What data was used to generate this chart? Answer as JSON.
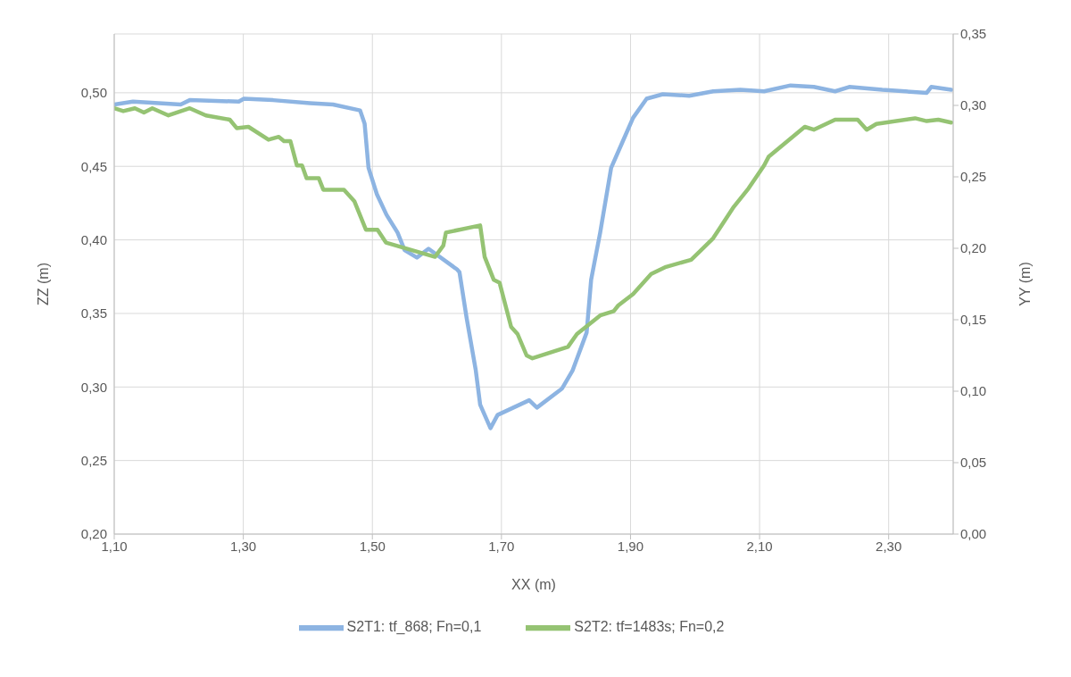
{
  "chart_data": {
    "type": "line",
    "xlabel": "XX (m)",
    "ylabel": "ZZ  (m)",
    "y2label": "YY (m)",
    "xlim": [
      1.1,
      2.4
    ],
    "xticks": [
      {
        "value": 1.1,
        "label": "1,10"
      },
      {
        "value": 1.3,
        "label": "1,30"
      },
      {
        "value": 1.5,
        "label": "1,50"
      },
      {
        "value": 1.7,
        "label": "1,70"
      },
      {
        "value": 1.9,
        "label": "1,90"
      },
      {
        "value": 2.1,
        "label": "2,10"
      },
      {
        "value": 2.3,
        "label": "2,30"
      }
    ],
    "ylim": [
      0.2,
      0.54
    ],
    "yticks": [
      {
        "value": 0.2,
        "label": "0,20"
      },
      {
        "value": 0.25,
        "label": "0,25"
      },
      {
        "value": 0.3,
        "label": "0,30"
      },
      {
        "value": 0.35,
        "label": "0,35"
      },
      {
        "value": 0.4,
        "label": "0,40"
      },
      {
        "value": 0.45,
        "label": "0,45"
      },
      {
        "value": 0.5,
        "label": "0,50"
      }
    ],
    "y2lim": [
      0,
      0.35
    ],
    "y2ticks": [
      {
        "value": 0,
        "label": "0,00"
      },
      {
        "value": 0.05,
        "label": "0,05"
      },
      {
        "value": 0.1,
        "label": "0,10"
      },
      {
        "value": 0.15,
        "label": "0,15"
      },
      {
        "value": 0.2,
        "label": "0,20"
      },
      {
        "value": 0.25,
        "label": "0,25"
      },
      {
        "value": 0.3,
        "label": "0,30"
      },
      {
        "value": 0.35,
        "label": "0,35"
      }
    ],
    "grid": true,
    "legend": "bottom",
    "marker": "none",
    "line_style": "solid",
    "series": [
      {
        "name": "S2T1: tf_868; Fn=0,1",
        "color": "#8db4e2",
        "x": [
          1.1,
          1.129,
          1.203,
          1.217,
          1.293,
          1.301,
          1.346,
          1.403,
          1.439,
          1.481,
          1.488,
          1.494,
          1.507,
          1.522,
          1.539,
          1.55,
          1.569,
          1.587,
          1.631,
          1.635,
          1.646,
          1.66,
          1.667,
          1.683,
          1.694,
          1.743,
          1.755,
          1.794,
          1.81,
          1.832,
          1.839,
          1.853,
          1.87,
          1.888,
          1.904,
          1.925,
          1.95,
          1.991,
          2.028,
          2.07,
          2.107,
          2.148,
          2.184,
          2.217,
          2.239,
          2.29,
          2.359,
          2.366,
          2.397
        ],
        "values": [
          0.492,
          0.494,
          0.492,
          0.495,
          0.494,
          0.496,
          0.495,
          0.493,
          0.492,
          0.488,
          0.479,
          0.449,
          0.431,
          0.417,
          0.405,
          0.393,
          0.388,
          0.394,
          0.38,
          0.378,
          0.347,
          0.312,
          0.288,
          0.272,
          0.281,
          0.291,
          0.286,
          0.299,
          0.311,
          0.337,
          0.373,
          0.405,
          0.449,
          0.467,
          0.483,
          0.496,
          0.499,
          0.498,
          0.501,
          0.502,
          0.501,
          0.505,
          0.504,
          0.501,
          0.504,
          0.502,
          0.5,
          0.504,
          0.502
        ]
      },
      {
        "name": "S2T2: tf=1483s; Fn=0,2",
        "color": "#95c373",
        "axis": "y2",
        "x": [
          1.1,
          1.114,
          1.132,
          1.146,
          1.159,
          1.184,
          1.217,
          1.242,
          1.279,
          1.29,
          1.308,
          1.339,
          1.355,
          1.363,
          1.373,
          1.383,
          1.391,
          1.398,
          1.417,
          1.424,
          1.456,
          1.472,
          1.49,
          1.508,
          1.521,
          1.559,
          1.597,
          1.61,
          1.614,
          1.667,
          1.674,
          1.688,
          1.697,
          1.715,
          1.725,
          1.739,
          1.748,
          1.803,
          1.817,
          1.853,
          1.874,
          1.881,
          1.904,
          1.932,
          1.955,
          1.994,
          2.01,
          2.028,
          2.06,
          2.083,
          2.107,
          2.114,
          2.17,
          2.184,
          2.217,
          2.252,
          2.266,
          2.281,
          2.341,
          2.359,
          2.377,
          2.397
        ],
        "values": [
          0.298,
          0.296,
          0.298,
          0.295,
          0.298,
          0.293,
          0.298,
          0.293,
          0.29,
          0.284,
          0.285,
          0.276,
          0.278,
          0.275,
          0.275,
          0.258,
          0.258,
          0.249,
          0.249,
          0.241,
          0.241,
          0.233,
          0.213,
          0.213,
          0.204,
          0.199,
          0.194,
          0.202,
          0.211,
          0.216,
          0.194,
          0.178,
          0.176,
          0.145,
          0.14,
          0.125,
          0.123,
          0.131,
          0.14,
          0.153,
          0.156,
          0.16,
          0.168,
          0.182,
          0.187,
          0.192,
          0.199,
          0.207,
          0.229,
          0.242,
          0.258,
          0.264,
          0.285,
          0.283,
          0.29,
          0.29,
          0.283,
          0.287,
          0.291,
          0.289,
          0.29,
          0.288
        ]
      }
    ]
  }
}
